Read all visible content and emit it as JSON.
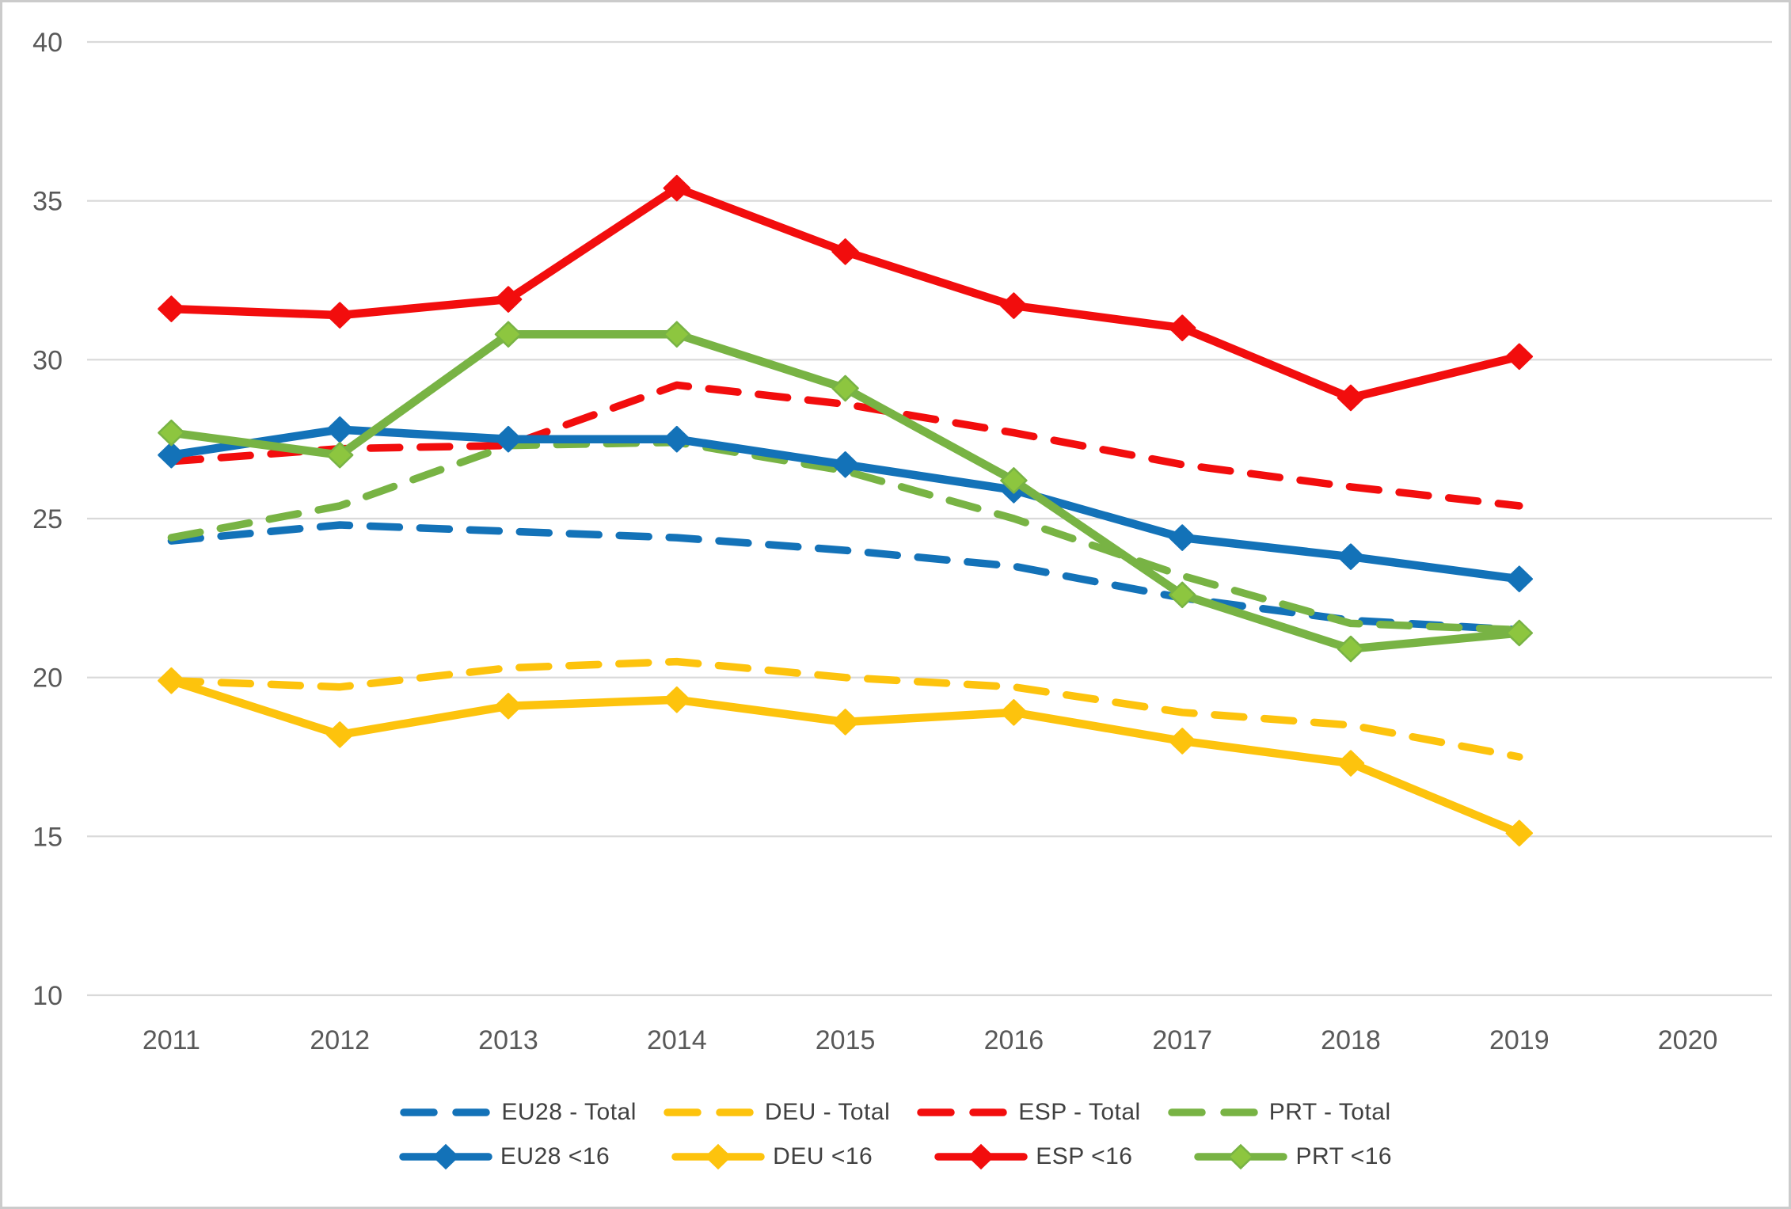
{
  "chart_data": {
    "type": "line",
    "title": "",
    "xlabel": "",
    "ylabel": "",
    "categories": [
      "2011",
      "2012",
      "2013",
      "2014",
      "2015",
      "2016",
      "2017",
      "2018",
      "2019",
      "2020"
    ],
    "ylim": [
      10,
      40
    ],
    "yticks": [
      40,
      35,
      30,
      25,
      20,
      15,
      10
    ],
    "grid": true,
    "legend_position": "bottom",
    "series": [
      {
        "name": "EU28 - Total",
        "style": "dashed",
        "color": "#1372B8",
        "values": [
          24.3,
          24.8,
          24.6,
          24.4,
          24.0,
          23.5,
          22.5,
          21.8,
          21.5
        ]
      },
      {
        "name": "DEU - Total",
        "style": "dashed",
        "color": "#FDC30D",
        "values": [
          19.9,
          19.7,
          20.3,
          20.5,
          20.0,
          19.7,
          18.9,
          18.5,
          17.5
        ]
      },
      {
        "name": "ESP - Total",
        "style": "dashed",
        "color": "#F20D0D",
        "values": [
          26.8,
          27.2,
          27.3,
          29.2,
          28.6,
          27.7,
          26.7,
          26.0,
          25.4
        ]
      },
      {
        "name": "PRT - Total",
        "style": "dashed",
        "color": "#78B344",
        "values": [
          24.4,
          25.4,
          27.3,
          27.4,
          26.5,
          25.0,
          23.2,
          21.7,
          21.5
        ]
      },
      {
        "name": "EU28 <16",
        "style": "solid",
        "color": "#1372B8",
        "marker_fill": "#1372B8",
        "values": [
          27.0,
          27.8,
          27.5,
          27.5,
          26.7,
          25.9,
          24.4,
          23.8,
          23.1
        ]
      },
      {
        "name": "DEU <16",
        "style": "solid",
        "color": "#FDC30D",
        "marker_fill": "#FDC30D",
        "values": [
          19.9,
          18.2,
          19.1,
          19.3,
          18.6,
          18.9,
          18.0,
          17.3,
          15.1
        ]
      },
      {
        "name": "ESP <16",
        "style": "solid",
        "color": "#F20D0D",
        "marker_fill": "#F20D0D",
        "values": [
          31.6,
          31.4,
          31.9,
          35.4,
          33.4,
          31.7,
          31.0,
          28.8,
          30.1
        ]
      },
      {
        "name": "PRT <16",
        "style": "solid",
        "color": "#78B344",
        "marker_fill": "#8DC63F",
        "values": [
          27.7,
          27.0,
          30.8,
          30.8,
          29.1,
          26.2,
          22.6,
          20.9,
          21.4
        ]
      }
    ]
  },
  "axes": {
    "y_labels": [
      "40",
      "35",
      "30",
      "25",
      "20",
      "15",
      "10"
    ],
    "x_labels": [
      "2011",
      "2012",
      "2013",
      "2014",
      "2015",
      "2016",
      "2017",
      "2018",
      "2019",
      "2020"
    ]
  },
  "legend": {
    "rows": [
      {
        "style": "dashed",
        "items": [
          "EU28 - Total",
          "DEU - Total",
          "ESP - Total",
          "PRT - Total"
        ]
      },
      {
        "style": "solid",
        "items": [
          "EU28 <16",
          "DEU <16",
          "ESP <16",
          "PRT <16"
        ]
      }
    ]
  },
  "colors": {
    "grid": "#D9D9D9",
    "axis_text": "#595959",
    "legend_text": "#404040",
    "background": "#FFFFFF",
    "frame_border": "#CBCBCB",
    "blue": "#1372B8",
    "yellow": "#FDC30D",
    "red": "#F20D0D",
    "green": "#78B344",
    "green_marker_fill": "#8DC63F"
  }
}
